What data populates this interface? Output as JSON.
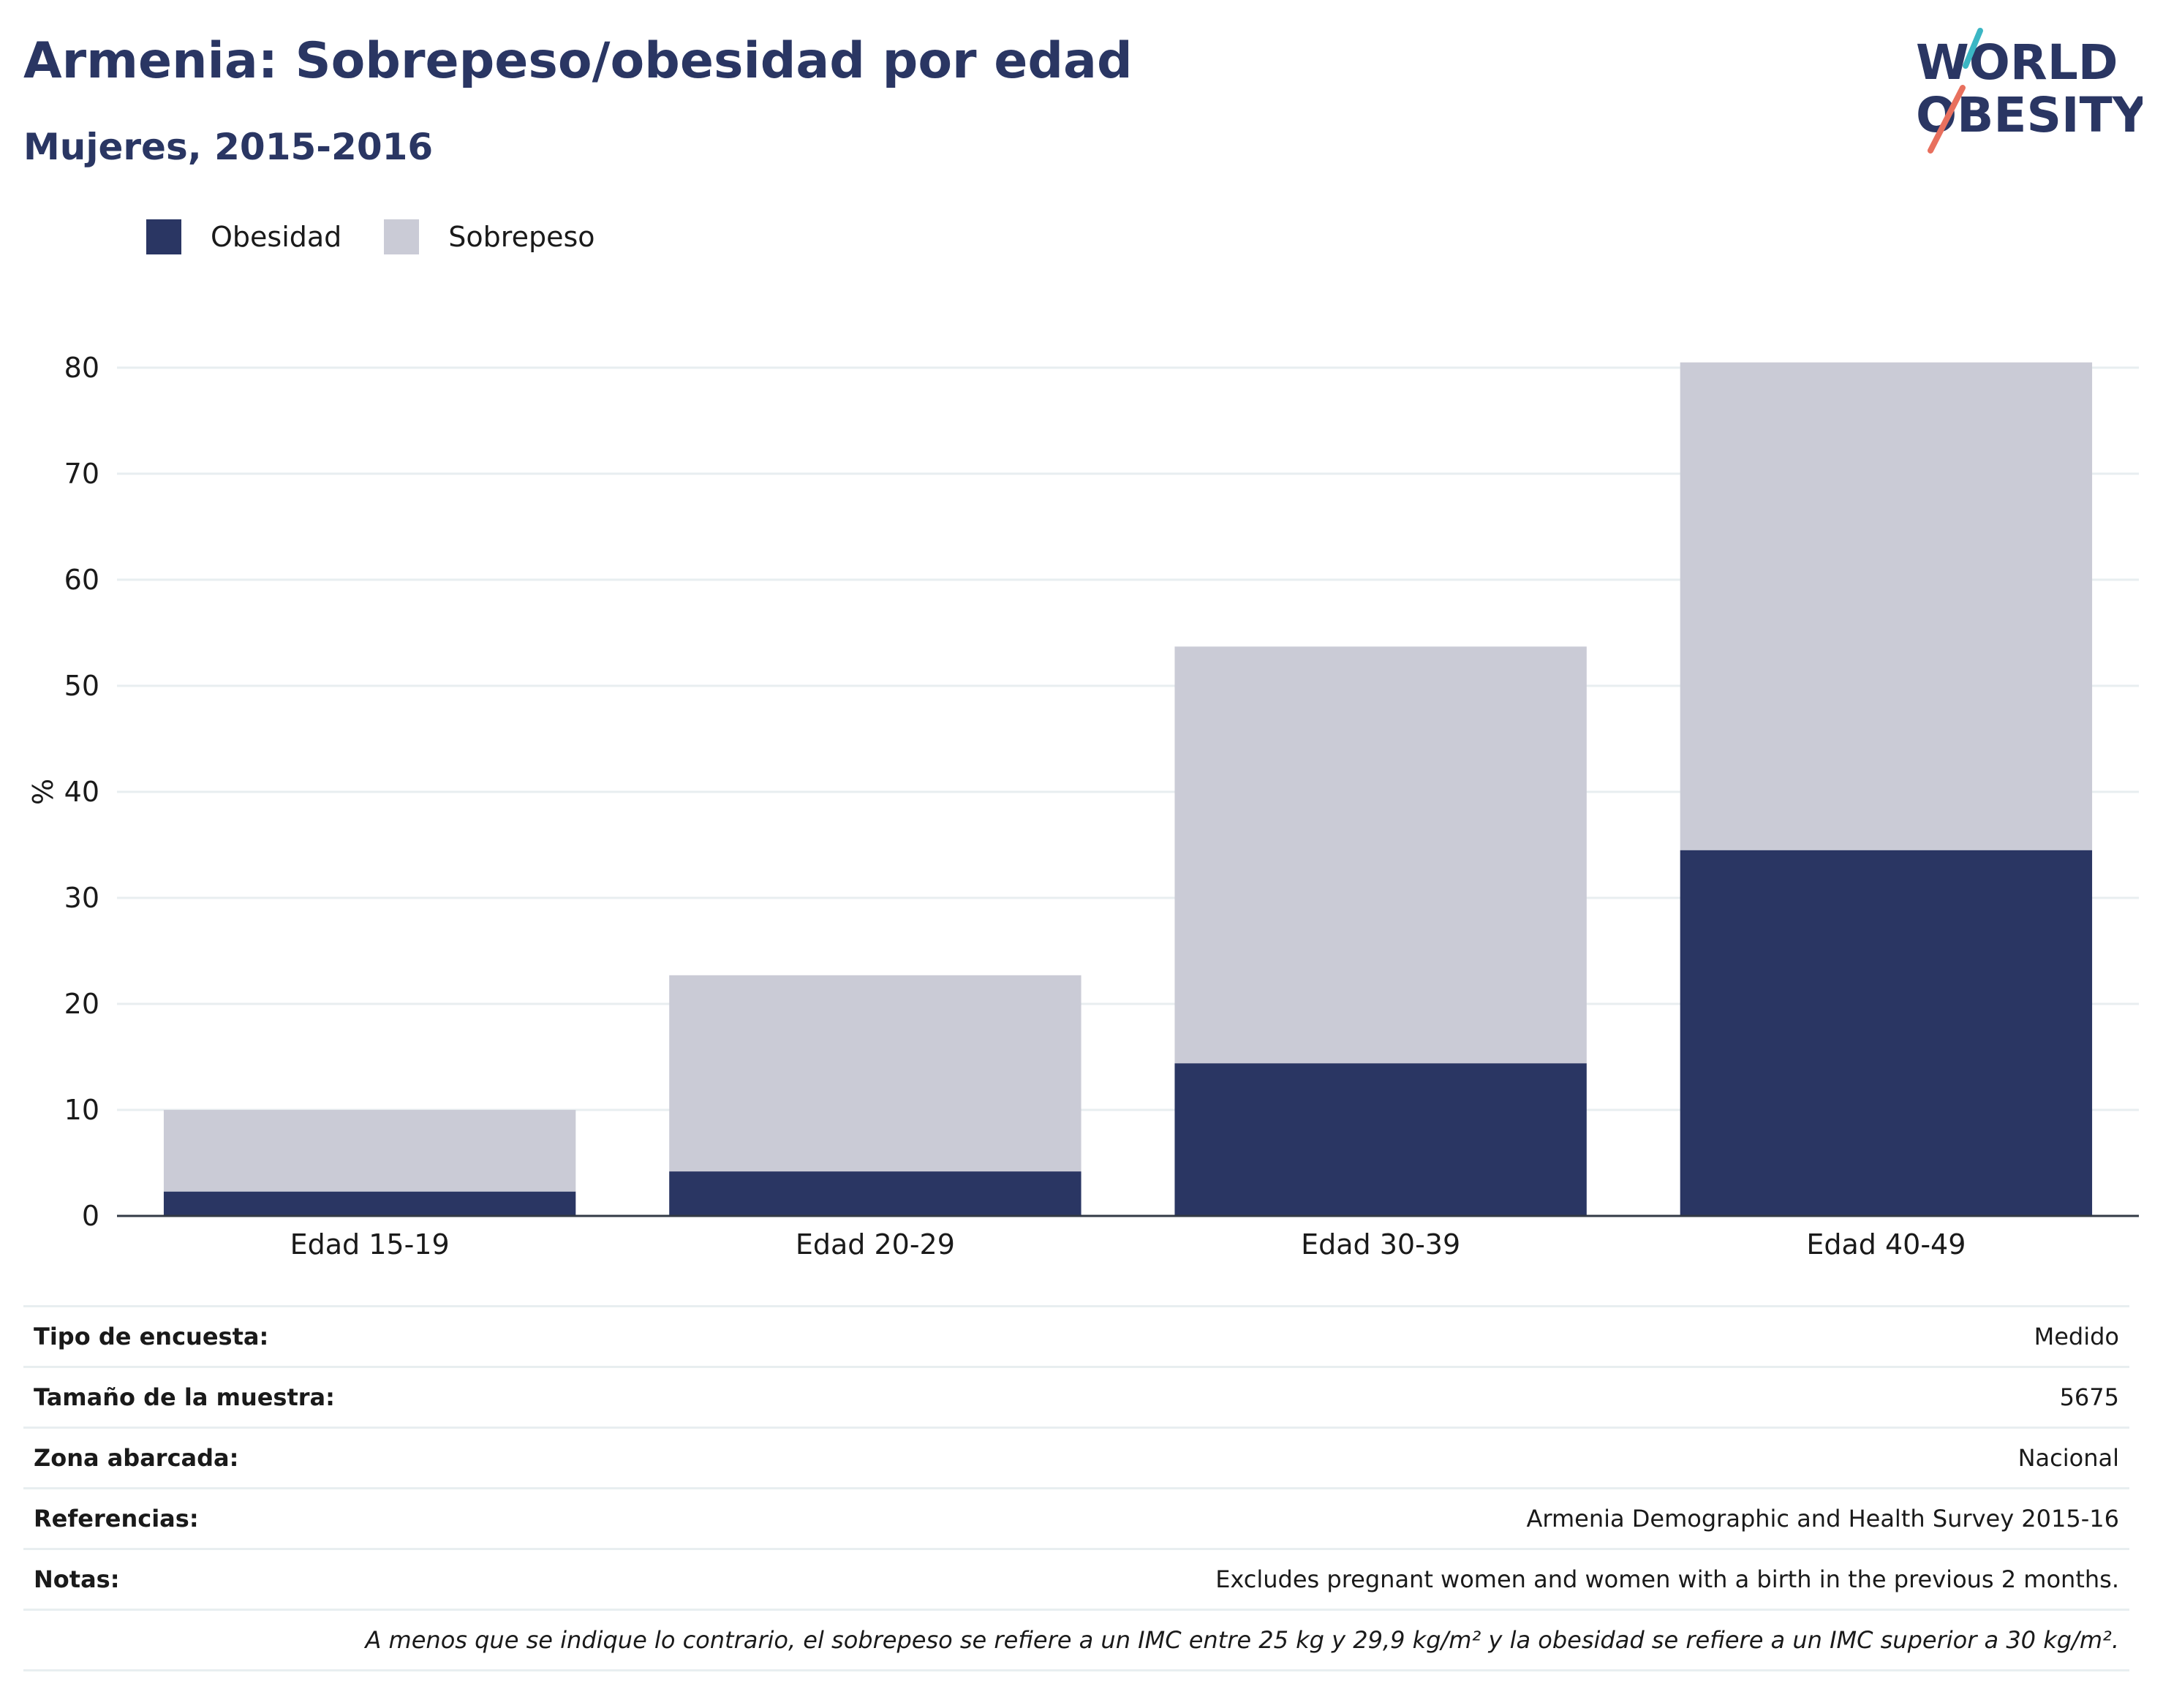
{
  "title": "Armenia: Sobrepeso/obesidad por edad",
  "subtitle": "Mujeres, 2015-2016",
  "logo": {
    "line1": "WORLD",
    "line2": "OBESITY"
  },
  "legend": [
    {
      "label": "Obesidad",
      "color": "#2a3663"
    },
    {
      "label": "Sobrepeso",
      "color": "#cacbd6"
    }
  ],
  "chart_data": {
    "type": "bar",
    "stacked": true,
    "categories": [
      "Edad 15-19",
      "Edad 20-29",
      "Edad 30-39",
      "Edad 40-49"
    ],
    "series": [
      {
        "name": "Obesidad",
        "values": [
          2.3,
          4.2,
          14.4,
          34.5
        ],
        "color": "#2a3663"
      },
      {
        "name": "Sobrepeso",
        "values": [
          7.7,
          18.5,
          39.3,
          46.0
        ],
        "color": "#cacbd6"
      }
    ],
    "ylabel": "%",
    "ylim": [
      0,
      80
    ],
    "yticks": [
      0,
      10,
      20,
      30,
      40,
      50,
      60,
      70,
      80
    ],
    "grid": true,
    "legend_position": "top-left"
  },
  "info": [
    {
      "label": "Tipo de encuesta:",
      "value": "Medido"
    },
    {
      "label": "Tamaño de la muestra:",
      "value": "5675"
    },
    {
      "label": "Zona abarcada:",
      "value": "Nacional"
    },
    {
      "label": "Referencias:",
      "value": "Armenia Demographic and Health Survey 2015-16"
    },
    {
      "label": "Notas:",
      "value": "Excludes pregnant women and women with a birth in the previous 2 months."
    }
  ],
  "footnote": "A menos que se indique lo contrario, el sobrepeso se refiere a un IMC entre 25 kg y 29,9 kg/m² y la obesidad se refiere a un IMC superior a 30 kg/m²."
}
